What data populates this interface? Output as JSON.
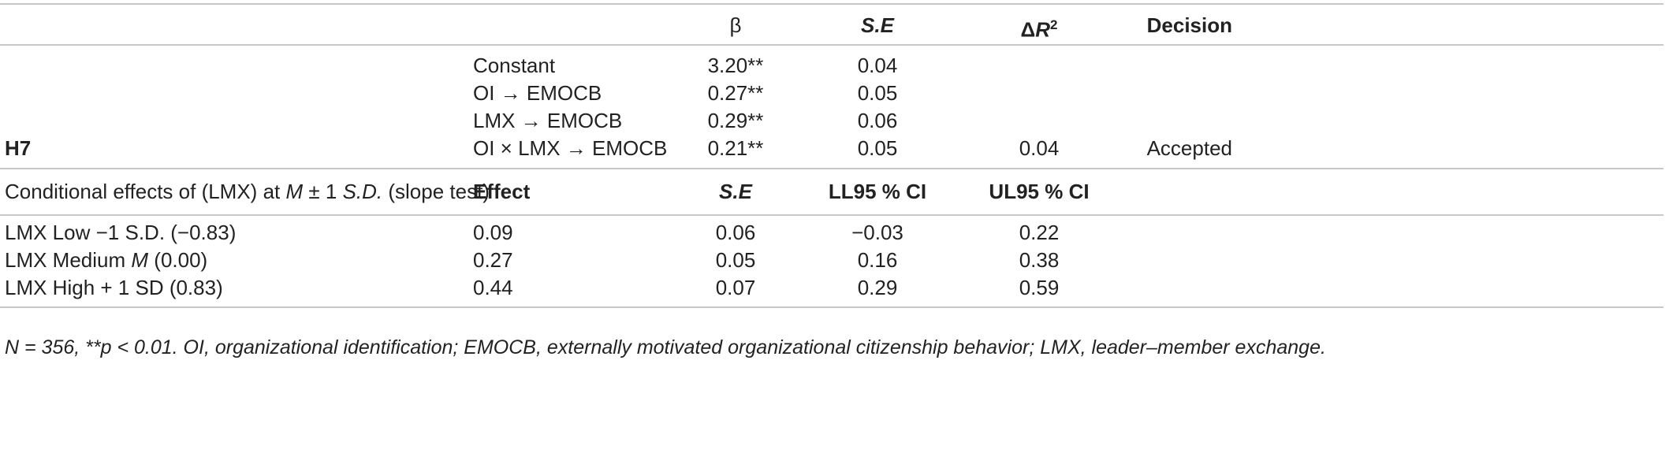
{
  "header": {
    "beta": "β",
    "se": "S.E",
    "delta_r2_delta": "Δ",
    "delta_r2_r": "R",
    "delta_r2_sup": "2",
    "decision": "Decision"
  },
  "regression": {
    "hypothesis": "H7",
    "rows": [
      {
        "label": "Constant",
        "beta": "3.20**",
        "se": "0.04",
        "dr2": "",
        "decision": ""
      },
      {
        "label": "OI → EMOCB",
        "beta": "0.27**",
        "se": "0.05",
        "dr2": "",
        "decision": ""
      },
      {
        "label": "LMX → EMOCB",
        "beta": "0.29**",
        "se": "0.06",
        "dr2": "",
        "decision": ""
      },
      {
        "label": "OI × LMX → EMOCB",
        "beta": "0.21**",
        "se": "0.05",
        "dr2": "0.04",
        "decision": "Accepted"
      }
    ]
  },
  "conditional": {
    "title_a": "Conditional effects of (LMX) at ",
    "title_m": "M",
    "title_b": " ± 1 ",
    "title_sd": "S.D.",
    "title_c": " (slope test)",
    "h_effect": "Effect",
    "h_se": "S.E",
    "h_ll": "LL95 % CI",
    "h_ul": "UL95 % CI",
    "rows": [
      {
        "label_a": "LMX Low −1 S.D. (−0.83)",
        "label_m": "",
        "label_b": "",
        "effect": "0.09",
        "se": "0.06",
        "ll": "−0.03",
        "ul": "0.22"
      },
      {
        "label_a": "LMX Medium ",
        "label_m": "M",
        "label_b": " (0.00)",
        "effect": "0.27",
        "se": "0.05",
        "ll": "0.16",
        "ul": "0.38"
      },
      {
        "label_a": "LMX High + 1 SD (0.83)",
        "label_m": "",
        "label_b": "",
        "effect": "0.44",
        "se": "0.07",
        "ll": "0.29",
        "ul": "0.59"
      }
    ]
  },
  "footnote": "N = 356, **p < 0.01. OI, organizational identification; EMOCB, externally motivated organizational citizenship behavior; LMX, leader–member exchange."
}
